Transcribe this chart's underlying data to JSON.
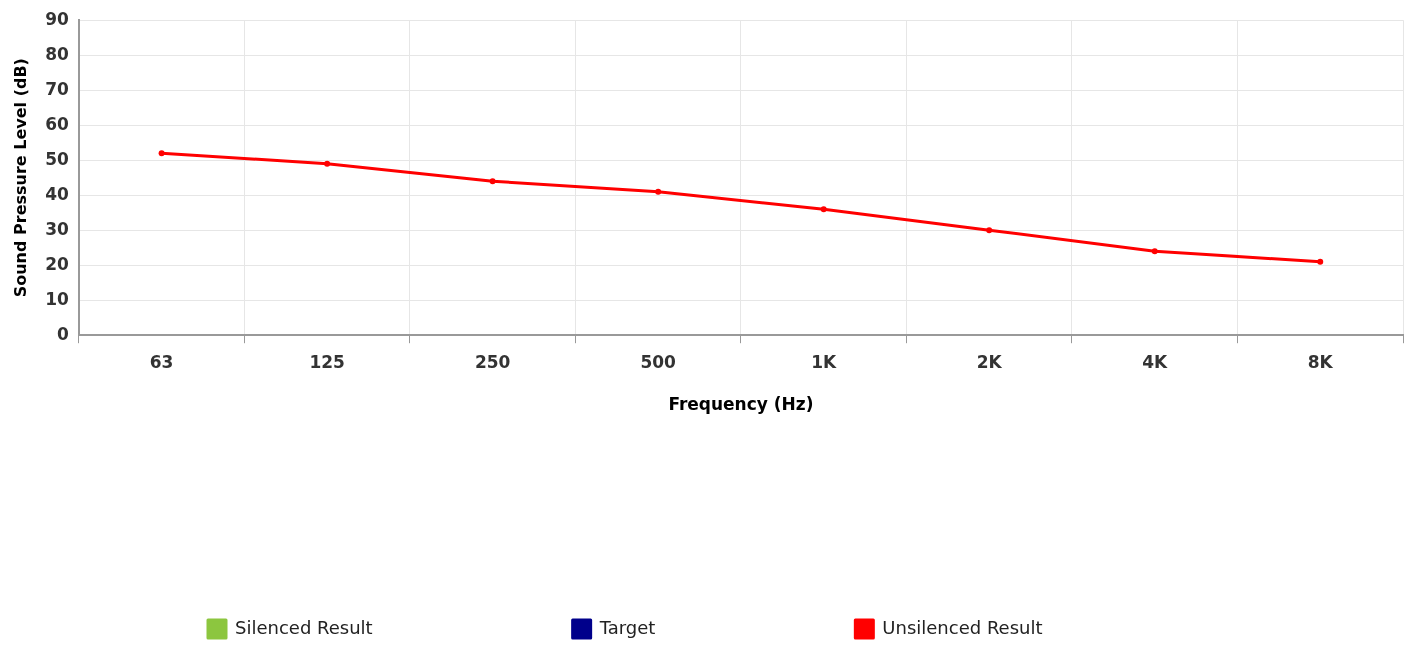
{
  "chart_data": {
    "type": "line",
    "xlabel": "Frequency (Hz)",
    "ylabel": "Sound Pressure Level (dB)",
    "categories": [
      "63",
      "125",
      "250",
      "500",
      "1K",
      "2K",
      "4K",
      "8K"
    ],
    "series": [
      {
        "name": "Silenced Result",
        "color": "#8cc63f",
        "values": [
          null,
          null,
          null,
          null,
          null,
          null,
          null,
          null
        ]
      },
      {
        "name": "Target",
        "color": "#00008b",
        "values": [
          null,
          null,
          null,
          null,
          null,
          null,
          null,
          null
        ]
      },
      {
        "name": "Unsilenced Result",
        "color": "#ff0000",
        "values": [
          52,
          49,
          44,
          41,
          36,
          30,
          24,
          21
        ]
      }
    ],
    "ylim": [
      0,
      90
    ],
    "yticks": [
      0,
      10,
      20,
      30,
      40,
      50,
      60,
      70,
      80,
      90
    ],
    "grid": true,
    "legend": "bottom",
    "marker": "circle",
    "line_style": "solid"
  }
}
